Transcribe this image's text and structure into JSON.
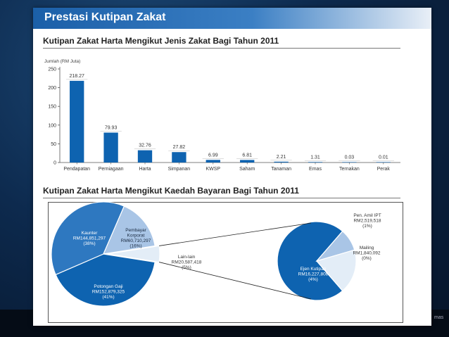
{
  "slide_title": "Prestasi Kutipan Zakat",
  "chart_data": [
    {
      "type": "bar",
      "title": "Kutipan Zakat Harta Mengikut Jenis Zakat Bagi Tahun 2011",
      "ylabel": "Jumlah (RM Juta)",
      "xlabel": "",
      "ylim": [
        0,
        250
      ],
      "yticks": [
        0,
        50,
        100,
        150,
        200,
        250
      ],
      "categories": [
        "Pendapatan",
        "Perniagaan",
        "Harta",
        "Simpanan",
        "KWSP",
        "Saham",
        "Tanaman",
        "Emas",
        "Ternakan",
        "Perak"
      ],
      "values": [
        218.27,
        79.93,
        32.76,
        27.82,
        6.99,
        6.81,
        2.21,
        1.31,
        0.03,
        0.01
      ],
      "value_labels": [
        "218.27",
        "79.93",
        "32.76",
        "27.82",
        "6.99",
        "6.81",
        "2.21",
        "1.31",
        "0.03",
        "0.01"
      ],
      "bar_color": "#0e63b0",
      "grid": false
    },
    {
      "type": "pie",
      "title": "Kutipan Zakat Harta Mengikut Kaedah Bayaran Bagi Tahun 2011",
      "slices": [
        {
          "name": "Potongan Gaji",
          "amount": "RM152,879,325",
          "pct": "(41%)",
          "value": 41,
          "color": "#0e63b0"
        },
        {
          "name": "Kaunter",
          "amount": "RM144,851,297",
          "pct": "(38%)",
          "value": 38,
          "color": "#2e78c0"
        },
        {
          "name": "Pembayar Korporat",
          "amount": "RM60,710,297",
          "pct": "(16%)",
          "value": 16,
          "color": "#a9c5e6"
        },
        {
          "name": "Lain-lain",
          "amount": "RM20,587,418",
          "pct": "(5%)",
          "value": 5,
          "color": "#e3edf7"
        }
      ],
      "breakdown_of": "Lain-lain",
      "sub_slices": [
        {
          "name": "Ejen Kutipan",
          "amount": "RM16,227,808",
          "pct": "(4%)",
          "value": 4,
          "color": "#0e63b0"
        },
        {
          "name": "Mailing",
          "amount": "RM1,840,092",
          "pct": "(0%)",
          "value": 0.5,
          "color": "#a9c5e6"
        },
        {
          "name": "Pen. Amil IPT",
          "amount": "RM2,519,518",
          "pct": "(1%)",
          "value": 1,
          "color": "#e3edf7"
        }
      ]
    }
  ],
  "corner_text": "mas"
}
